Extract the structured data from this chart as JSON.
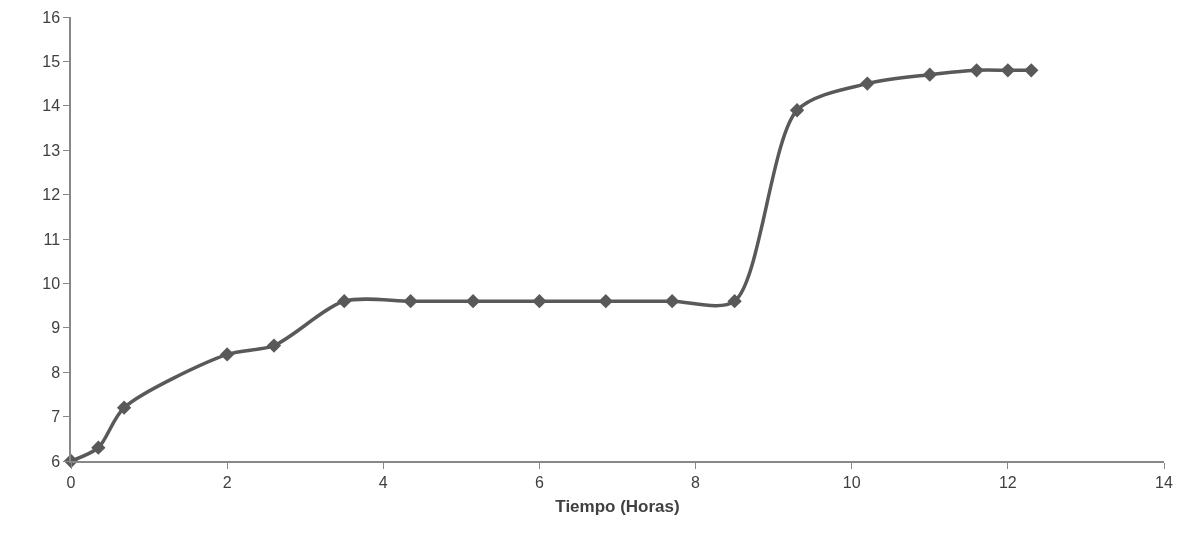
{
  "chart_data": {
    "type": "line",
    "xlabel": "Tiempo (Horas)",
    "x": [
      0,
      0.35,
      0.68,
      2.0,
      2.6,
      3.5,
      4.35,
      5.15,
      6.0,
      6.85,
      7.7,
      8.5,
      9.3,
      10.2,
      11.0,
      11.6,
      12.0,
      12.3
    ],
    "series": [
      {
        "color": "#595959",
        "values": [
          6,
          6.3,
          7.2,
          8.4,
          8.6,
          9.6,
          9.6,
          9.6,
          9.6,
          9.6,
          9.6,
          9.6,
          13.9,
          14.5,
          14.7,
          14.8,
          14.8,
          14.8
        ]
      }
    ],
    "xlim": [
      0,
      14
    ],
    "xticks": [
      0,
      2,
      4,
      6,
      8,
      10,
      12,
      14
    ],
    "ylim": [
      6,
      16
    ],
    "yticks": [
      6,
      7,
      8,
      9,
      10,
      11,
      12,
      13,
      14,
      15,
      16
    ],
    "grid": false,
    "legend": false,
    "marker": "diamond",
    "line_style": "solid"
  }
}
